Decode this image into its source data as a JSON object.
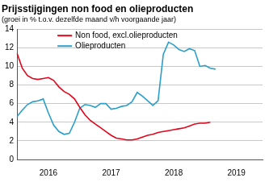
{
  "chart_data": {
    "type": "line",
    "title": "Prijsstijgingen non food en olieproducten",
    "subtitle": "(groei in % t.o.v. dezelfde maand v/h voorgaande jaar)",
    "categories": [
      null,
      null,
      null,
      null,
      null,
      null,
      "2016",
      null,
      null,
      null,
      null,
      null,
      null,
      null,
      null,
      null,
      null,
      null,
      "2017",
      null,
      null,
      null,
      null,
      null,
      null,
      null,
      null,
      null,
      null,
      null,
      "2018",
      null,
      null,
      null,
      null,
      null,
      null,
      null,
      null,
      null,
      null,
      null,
      "2019",
      null,
      null,
      null,
      null,
      null
    ],
    "series": [
      {
        "name": "Non food, excl.olieproducten",
        "color": "#e3051b",
        "marker": "none",
        "values": [
          11.4,
          9.8,
          9.0,
          8.7,
          8.6,
          8.7,
          8.8,
          8.5,
          7.8,
          7.3,
          7.0,
          6.5,
          5.6,
          4.8,
          4.2,
          3.8,
          3.4,
          3.0,
          2.6,
          2.3,
          2.2,
          2.1,
          2.1,
          2.2,
          2.4,
          2.6,
          2.7,
          2.9,
          3.0,
          3.1,
          3.2,
          3.3,
          3.4,
          3.6,
          3.8,
          3.9,
          3.9,
          4.0,
          null,
          null,
          null,
          null,
          null,
          null,
          null,
          null,
          null,
          null
        ]
      },
      {
        "name": "Olieproducten",
        "color": "#2a9fc9",
        "marker": "none",
        "values": [
          4.6,
          5.3,
          5.9,
          6.2,
          6.3,
          6.5,
          5.0,
          3.7,
          3.0,
          2.7,
          2.8,
          4.0,
          5.5,
          5.9,
          5.8,
          5.6,
          6.0,
          6.0,
          5.4,
          5.5,
          5.7,
          5.8,
          6.2,
          7.2,
          6.8,
          6.3,
          5.8,
          6.3,
          11.3,
          12.6,
          12.3,
          11.8,
          11.6,
          11.9,
          11.7,
          10.0,
          10.1,
          9.8,
          9.7,
          null,
          null,
          null,
          null,
          null,
          null,
          null,
          null,
          null
        ]
      }
    ],
    "ylim": [
      0,
      14
    ],
    "yticks": [
      0,
      2,
      4,
      6,
      8,
      10,
      12,
      14
    ],
    "grid": true,
    "legend": "upper left"
  }
}
